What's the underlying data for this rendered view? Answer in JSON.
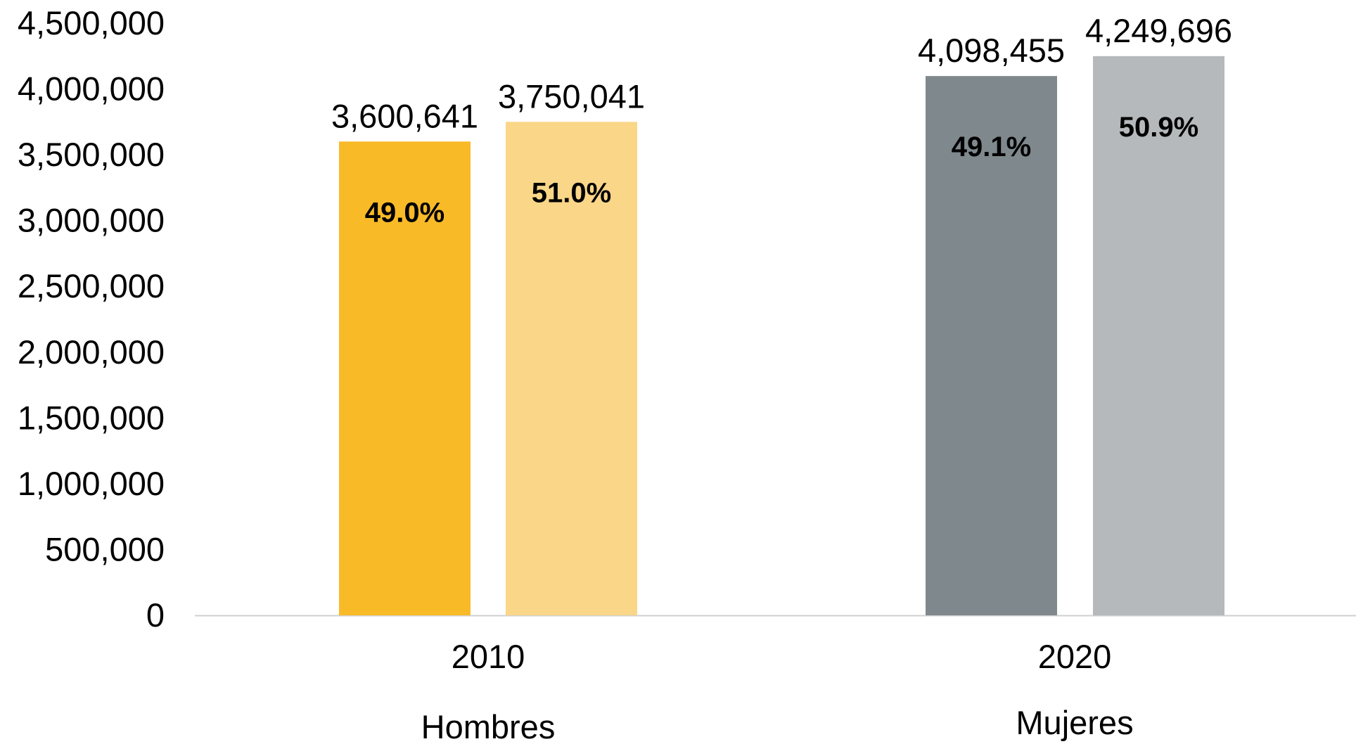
{
  "chart_data": {
    "type": "bar",
    "categories": [
      "2010",
      "2020"
    ],
    "ylim": [
      0,
      4500000
    ],
    "ytick_step": 500000,
    "ytick_labels": [
      "0",
      "500,000",
      "1,000,000",
      "1,500,000",
      "2,000,000",
      "2,500,000",
      "3,000,000",
      "3,500,000",
      "4,000,000",
      "4,500,000"
    ],
    "bars": [
      {
        "category": "2010",
        "value": 3600641,
        "value_label": "3,600,641",
        "pct_label": "49.0%",
        "color": "#F9BA28"
      },
      {
        "category": "2010",
        "value": 3750041,
        "value_label": "3,750,041",
        "pct_label": "51.0%",
        "color": "#FAD688"
      },
      {
        "category": "2020",
        "value": 4098455,
        "value_label": "4,098,455",
        "pct_label": "49.1%",
        "color": "#7F888D"
      },
      {
        "category": "2020",
        "value": 4249696,
        "value_label": "4,249,696",
        "pct_label": "50.9%",
        "color": "#B5B9BC"
      }
    ],
    "group_labels": [
      "Hombres",
      "Mujeres"
    ],
    "axis_color": "#D0D0D0",
    "grid": false
  }
}
